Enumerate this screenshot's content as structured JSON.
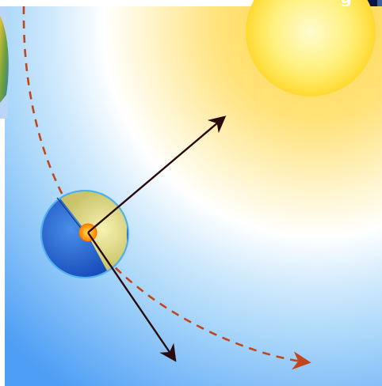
{
  "figure": {
    "caption_fragment": "g",
    "colors": {
      "sky_outer": "#4d9ef5",
      "sky_mid": "#bfe2fb",
      "glow_inner": "#fff6c2",
      "sun_core": "#fffbd0",
      "sun_edge": "#ffd21a",
      "orbit": "#c0461e",
      "planet_night": "#1c58cc",
      "planet_day": "#e6e08a",
      "planet_rim": "#4fb2ef",
      "core": "#ff9a00",
      "vector": "#2a0a0a",
      "header_band": "#0a1446",
      "side_bar": "#3c61a1"
    },
    "icons": [
      "sun-icon",
      "planet-icon",
      "orbit-path-icon"
    ]
  }
}
